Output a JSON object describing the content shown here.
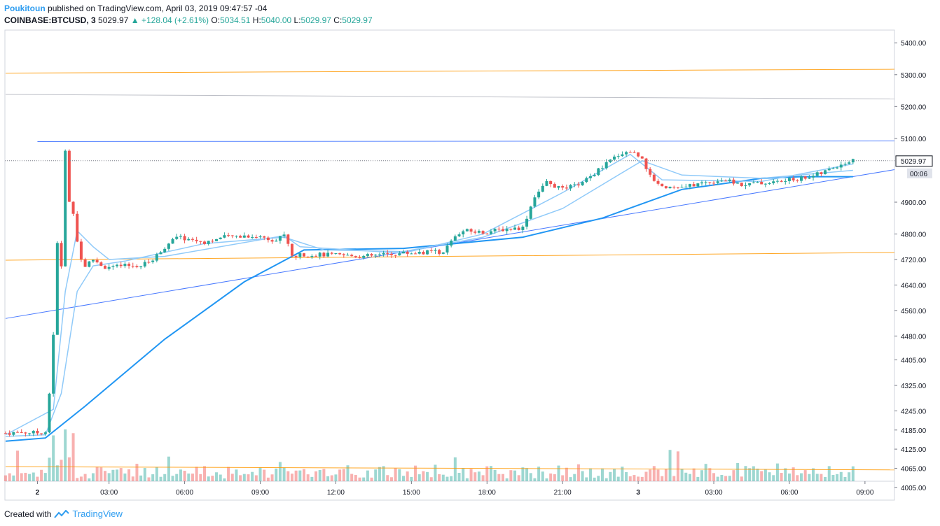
{
  "header": {
    "author": "Poukitoun",
    "published": "published on TradingView.com, April 03, 2019 09:47:57 -04"
  },
  "symbol_line": {
    "symbol": "COINBASE:BTCUSD, 3",
    "last": "5029.97",
    "change": "▲ +128.04 (+2.61%)",
    "o_label": "O:",
    "o": "5034.51",
    "h_label": "H:",
    "h": "5040.00",
    "l_label": "L:",
    "l": "5029.97",
    "c_label": "C:",
    "c": "5029.97"
  },
  "price_label": "5029.97",
  "countdown_label": "00:06",
  "footer": {
    "created": "Created with",
    "brand": "TradingView"
  },
  "colors": {
    "up": "#26a69a",
    "down": "#ef5350",
    "ma_blue": "#2196f3",
    "ma_light": "#90caf9",
    "orange": "#ff9800",
    "trend": "#2962ff",
    "grey": "#b2b5be"
  },
  "chart_data": {
    "type": "candlestick",
    "y_ticks": [
      "5400.00",
      "5300.00",
      "5200.00",
      "5100.00",
      "4900.00",
      "4800.00",
      "4720.00",
      "4640.00",
      "4560.00",
      "4480.00",
      "4405.00",
      "4325.00",
      "4245.00",
      "4185.00",
      "4125.00",
      "4065.00",
      "4005.00"
    ],
    "x_ticks": [
      "2",
      "03:00",
      "06:00",
      "09:00",
      "12:00",
      "15:00",
      "18:00",
      "21:00",
      "3",
      "03:00",
      "06:00",
      "09:00"
    ],
    "last_price": 5029.97,
    "ohlc_path": [
      [
        0,
        4175
      ],
      [
        4,
        4178
      ],
      [
        8,
        4176
      ],
      [
        10,
        4180
      ],
      [
        11,
        4300
      ],
      [
        12,
        4480
      ],
      [
        13,
        4770
      ],
      [
        14,
        4700
      ],
      [
        15,
        5060
      ],
      [
        16,
        4900
      ],
      [
        17,
        4870
      ],
      [
        18,
        4780
      ],
      [
        19,
        4720
      ],
      [
        20,
        4700
      ],
      [
        22,
        4720
      ],
      [
        25,
        4695
      ],
      [
        30,
        4700
      ],
      [
        34,
        4700
      ],
      [
        37,
        4720
      ],
      [
        40,
        4760
      ],
      [
        43,
        4790
      ],
      [
        50,
        4775
      ],
      [
        55,
        4790
      ],
      [
        60,
        4795
      ],
      [
        65,
        4790
      ],
      [
        68,
        4780
      ],
      [
        70,
        4800
      ],
      [
        72,
        4730
      ],
      [
        75,
        4735
      ],
      [
        80,
        4735
      ],
      [
        90,
        4730
      ],
      [
        100,
        4740
      ],
      [
        110,
        4745
      ],
      [
        113,
        4790
      ],
      [
        115,
        4810
      ],
      [
        120,
        4805
      ],
      [
        125,
        4815
      ],
      [
        130,
        4820
      ],
      [
        133,
        4920
      ],
      [
        136,
        4960
      ],
      [
        140,
        4940
      ],
      [
        145,
        4960
      ],
      [
        150,
        5010
      ],
      [
        154,
        5050
      ],
      [
        157,
        5060
      ],
      [
        160,
        5040
      ],
      [
        162,
        4980
      ],
      [
        165,
        4950
      ],
      [
        170,
        4945
      ],
      [
        175,
        4960
      ],
      [
        180,
        4970
      ],
      [
        185,
        4955
      ],
      [
        190,
        4960
      ],
      [
        195,
        4965
      ],
      [
        200,
        4975
      ],
      [
        205,
        4990
      ],
      [
        210,
        5020
      ],
      [
        213,
        5030
      ]
    ],
    "series": [
      {
        "name": "",
        "kind": "ma_slow",
        "points": [
          [
            0,
            4150
          ],
          [
            10,
            4160
          ],
          [
            20,
            4260
          ],
          [
            40,
            4470
          ],
          [
            60,
            4650
          ],
          [
            75,
            4750
          ],
          [
            100,
            4755
          ],
          [
            130,
            4790
          ],
          [
            150,
            4850
          ],
          [
            170,
            4940
          ],
          [
            190,
            4975
          ],
          [
            200,
            4980
          ],
          [
            213,
            4980
          ]
        ]
      },
      {
        "name": "",
        "kind": "ma_mid",
        "points": [
          [
            0,
            4165
          ],
          [
            10,
            4170
          ],
          [
            14,
            4300
          ],
          [
            18,
            4620
          ],
          [
            22,
            4700
          ],
          [
            30,
            4715
          ],
          [
            50,
            4770
          ],
          [
            70,
            4790
          ],
          [
            80,
            4750
          ],
          [
            100,
            4745
          ],
          [
            120,
            4790
          ],
          [
            140,
            4880
          ],
          [
            160,
            5030
          ],
          [
            170,
            4985
          ],
          [
            190,
            4975
          ],
          [
            213,
            5000
          ]
        ]
      },
      {
        "name": "",
        "kind": "ma_fast",
        "points": [
          [
            0,
            4170
          ],
          [
            12,
            4250
          ],
          [
            15,
            4620
          ],
          [
            18,
            4810
          ],
          [
            22,
            4760
          ],
          [
            26,
            4720
          ],
          [
            40,
            4730
          ],
          [
            70,
            4795
          ],
          [
            74,
            4760
          ],
          [
            100,
            4740
          ],
          [
            120,
            4800
          ],
          [
            140,
            4930
          ],
          [
            157,
            5050
          ],
          [
            165,
            4970
          ],
          [
            190,
            4965
          ],
          [
            213,
            5020
          ]
        ]
      }
    ],
    "lines": [
      {
        "kind": "orange",
        "from": [
          0,
          5305
        ],
        "to": [
          237,
          5317
        ]
      },
      {
        "kind": "grey",
        "from": [
          0,
          5238
        ],
        "to": [
          237,
          5224
        ]
      },
      {
        "kind": "trend",
        "from": [
          8,
          5090
        ],
        "to": [
          237,
          5092
        ]
      },
      {
        "kind": "trend",
        "from": [
          0,
          4535
        ],
        "to": [
          237,
          5002
        ]
      },
      {
        "kind": "orange",
        "from": [
          0,
          4718
        ],
        "to": [
          237,
          4742
        ]
      },
      {
        "kind": "orange",
        "from": [
          0,
          4070
        ],
        "to": [
          237,
          4060
        ]
      }
    ],
    "ylim": [
      3965,
      5440
    ],
    "x_tick_index": [
      8,
      26,
      45,
      64,
      83,
      102,
      121,
      140,
      159,
      178,
      197,
      216
    ]
  }
}
